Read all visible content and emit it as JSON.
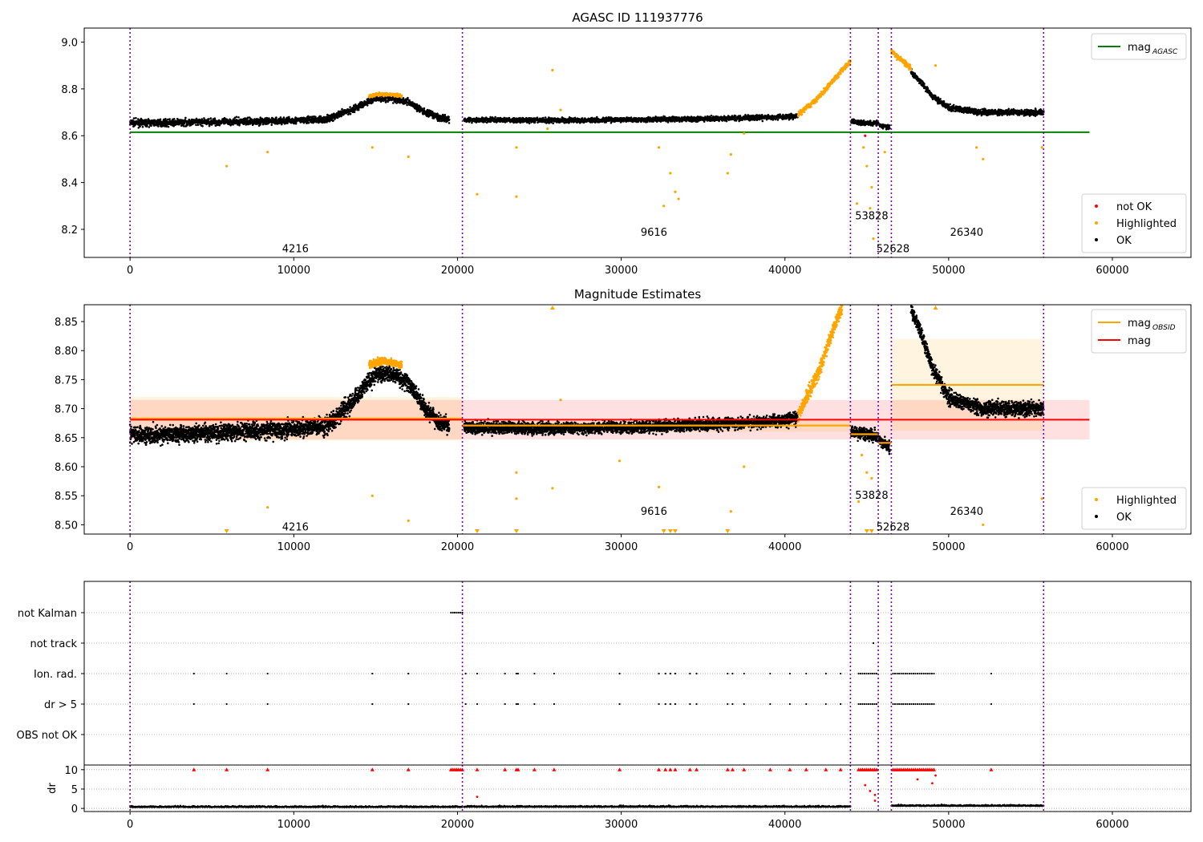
{
  "chart_data": [
    {
      "type": "scatter",
      "title": "AGASC ID 111937776",
      "xlim": [
        -2800,
        64800
      ],
      "ylim": [
        8.08,
        9.06
      ],
      "xticks": [
        0,
        10000,
        20000,
        30000,
        40000,
        50000,
        60000
      ],
      "yticks": [
        8.2,
        8.4,
        8.6,
        8.8,
        9.0
      ],
      "ytick_labels": [
        "8.2",
        "8.4",
        "8.6",
        "8.8",
        "9.0"
      ],
      "obs_boundaries": [
        0,
        20300,
        44000,
        45700,
        46500,
        55800
      ],
      "obsid_labels": [
        {
          "text": "4216",
          "x": 10100,
          "y": 8.12
        },
        {
          "text": "9616",
          "x": 32000,
          "y": 8.19
        },
        {
          "text": "53828",
          "x": 45300,
          "y": 8.26
        },
        {
          "text": "52628",
          "x": 46600,
          "y": 8.12
        },
        {
          "text": "26340",
          "x": 51100,
          "y": 8.19
        }
      ],
      "lines": [
        {
          "name": "mag$_{AGASC}$",
          "label_main": "mag",
          "label_sub": "AGASC",
          "y": 8.615,
          "x0": 0,
          "x1": 58600,
          "color": "#008000"
        }
      ],
      "legend_lines": {
        "position": "upper right",
        "entries": [
          {
            "main": "mag",
            "sub": "AGASC",
            "color": "#008000"
          }
        ]
      },
      "legend_points": {
        "position": "lower right",
        "entries": [
          {
            "label": "not OK",
            "color": "#ff0000"
          },
          {
            "label": "Highlighted",
            "color": "#ffa500"
          },
          {
            "label": "OK",
            "color": "#000000"
          }
        ]
      },
      "series": [
        {
          "name": "OK",
          "color": "#000000",
          "segments": [
            {
              "x": [
                0,
                2000,
                4000,
                6000,
                8000,
                10000,
                12000,
                13500,
                15000,
                16000,
                17000,
                18000,
                19000,
                19500
              ],
              "y": [
                8.655,
                8.655,
                8.658,
                8.66,
                8.662,
                8.665,
                8.67,
                8.71,
                8.76,
                8.76,
                8.745,
                8.7,
                8.675,
                8.67
              ],
              "spread": 0.014
            },
            {
              "x": [
                20400,
                25000,
                30000,
                35000,
                38000,
                40000,
                40800
              ],
              "y": [
                8.668,
                8.666,
                8.668,
                8.672,
                8.676,
                8.68,
                8.685
              ],
              "spread": 0.01
            },
            {
              "x": [
                44050,
                45000,
                45700
              ],
              "y": [
                8.66,
                8.656,
                8.652
              ],
              "spread": 0.01
            },
            {
              "x": [
                45750,
                46400
              ],
              "y": [
                8.645,
                8.635
              ],
              "spread": 0.01
            },
            {
              "x": [
                47700,
                48200,
                49000,
                50000,
                52000,
                55800
              ],
              "y": [
                8.87,
                8.84,
                8.77,
                8.72,
                8.7,
                8.7
              ],
              "spread": 0.012
            }
          ]
        },
        {
          "name": "Highlighted",
          "color": "#ffa500",
          "segments": [
            {
              "x": [
                14600,
                15000,
                15500,
                16000,
                16600
              ],
              "y": [
                8.77,
                8.775,
                8.778,
                8.775,
                8.77
              ],
              "spread": 0.007
            },
            {
              "x": [
                40800,
                42000,
                43000,
                44000
              ],
              "y": [
                8.69,
                8.76,
                8.84,
                8.92
              ],
              "spread": 0.012
            },
            {
              "x": [
                46500,
                47000,
                47700
              ],
              "y": [
                8.96,
                8.93,
                8.89
              ],
              "spread": 0.012
            }
          ],
          "outliers": [
            {
              "x": 5900,
              "y": 8.47
            },
            {
              "x": 8400,
              "y": 8.53
            },
            {
              "x": 14800,
              "y": 8.55
            },
            {
              "x": 17000,
              "y": 8.51
            },
            {
              "x": 21200,
              "y": 8.35
            },
            {
              "x": 23600,
              "y": 8.34
            },
            {
              "x": 23600,
              "y": 8.55
            },
            {
              "x": 25500,
              "y": 8.63
            },
            {
              "x": 25800,
              "y": 8.88
            },
            {
              "x": 26300,
              "y": 8.71
            },
            {
              "x": 32300,
              "y": 8.55
            },
            {
              "x": 32600,
              "y": 8.3
            },
            {
              "x": 33000,
              "y": 8.44
            },
            {
              "x": 33300,
              "y": 8.36
            },
            {
              "x": 33500,
              "y": 8.33
            },
            {
              "x": 36500,
              "y": 8.44
            },
            {
              "x": 36700,
              "y": 8.52
            },
            {
              "x": 37500,
              "y": 8.61
            },
            {
              "x": 44400,
              "y": 8.31
            },
            {
              "x": 44800,
              "y": 8.55
            },
            {
              "x": 45000,
              "y": 8.47
            },
            {
              "x": 45200,
              "y": 8.29
            },
            {
              "x": 45300,
              "y": 8.38
            },
            {
              "x": 45400,
              "y": 8.16
            },
            {
              "x": 46100,
              "y": 8.53
            },
            {
              "x": 49200,
              "y": 8.9
            },
            {
              "x": 51700,
              "y": 8.55
            },
            {
              "x": 52100,
              "y": 8.5
            },
            {
              "x": 55700,
              "y": 8.55
            }
          ]
        },
        {
          "name": "not OK",
          "color": "#ff0000",
          "segments": [],
          "outliers": [
            {
              "x": 44900,
              "y": 8.6
            }
          ]
        }
      ]
    },
    {
      "type": "scatter",
      "title": "Magnitude Estimates",
      "xlim": [
        -2800,
        64800
      ],
      "ylim": [
        8.484,
        8.879
      ],
      "xticks": [
        0,
        10000,
        20000,
        30000,
        40000,
        50000,
        60000
      ],
      "yticks": [
        8.5,
        8.55,
        8.6,
        8.65,
        8.7,
        8.75,
        8.8,
        8.85
      ],
      "ytick_labels": [
        "8.50",
        "8.55",
        "8.60",
        "8.65",
        "8.70",
        "8.75",
        "8.80",
        "8.85"
      ],
      "obs_boundaries": [
        0,
        20300,
        44000,
        45700,
        46500,
        55800
      ],
      "obsid_labels": [
        {
          "text": "4216",
          "x": 10100,
          "y": 8.497
        },
        {
          "text": "9616",
          "x": 32000,
          "y": 8.524
        },
        {
          "text": "53828",
          "x": 45300,
          "y": 8.552
        },
        {
          "text": "52628",
          "x": 46600,
          "y": 8.497
        },
        {
          "text": "26340",
          "x": 51100,
          "y": 8.524
        }
      ],
      "lines": [
        {
          "name": "mag",
          "y": 8.681,
          "x0": 0,
          "x1": 58600,
          "color": "#ff0000",
          "band": [
            8.647,
            8.715
          ]
        },
        {
          "name": "mag$_{OBSID}$",
          "color": "#ffa500",
          "steps": [
            {
              "x0": 0,
              "x1": 20300,
              "y": 8.683,
              "band": [
                8.645,
                8.72
              ]
            },
            {
              "x0": 20300,
              "x1": 44000,
              "y": 8.671,
              "band": [
                8.66,
                8.682
              ]
            },
            {
              "x0": 44000,
              "x1": 45700,
              "y": 8.656,
              "band": [
                8.65,
                8.662
              ]
            },
            {
              "x0": 45700,
              "x1": 46500,
              "y": 8.641,
              "band": [
                8.636,
                8.646
              ]
            },
            {
              "x0": 46500,
              "x1": 55800,
              "y": 8.741,
              "band": [
                8.662,
                8.82
              ]
            }
          ]
        }
      ],
      "legend_lines": {
        "position": "upper right",
        "entries": [
          {
            "main": "mag",
            "sub": "OBSID",
            "color": "#ffa500"
          },
          {
            "main": "mag",
            "sub": "",
            "color": "#ff0000"
          }
        ]
      },
      "legend_points": {
        "position": "lower right",
        "entries": [
          {
            "label": "Highlighted",
            "color": "#ffa500"
          },
          {
            "label": "OK",
            "color": "#000000"
          }
        ]
      },
      "series": [
        {
          "name": "OK",
          "color": "#000000",
          "segments": [
            {
              "x": [
                0,
                2000,
                4000,
                6000,
                8000,
                10000,
                12000,
                13500,
                15000,
                16000,
                17000,
                18000,
                19000,
                19500
              ],
              "y": [
                8.655,
                8.655,
                8.658,
                8.66,
                8.662,
                8.665,
                8.67,
                8.71,
                8.76,
                8.76,
                8.745,
                8.7,
                8.675,
                8.67
              ],
              "spread": 0.014
            },
            {
              "x": [
                20400,
                25000,
                30000,
                35000,
                38000,
                40000,
                40800
              ],
              "y": [
                8.668,
                8.666,
                8.668,
                8.672,
                8.676,
                8.68,
                8.685
              ],
              "spread": 0.01
            },
            {
              "x": [
                44050,
                45000,
                45700
              ],
              "y": [
                8.66,
                8.656,
                8.652
              ],
              "spread": 0.01
            },
            {
              "x": [
                45750,
                46400
              ],
              "y": [
                8.645,
                8.635
              ],
              "spread": 0.01
            },
            {
              "x": [
                47700,
                48200,
                49000,
                50000,
                52000,
                55800
              ],
              "y": [
                8.87,
                8.84,
                8.77,
                8.72,
                8.7,
                8.7
              ],
              "spread": 0.012
            }
          ]
        },
        {
          "name": "Highlighted",
          "color": "#ffa500",
          "segments": [
            {
              "x": [
                14600,
                15000,
                15500,
                16000,
                16600
              ],
              "y": [
                8.775,
                8.78,
                8.782,
                8.78,
                8.775
              ],
              "spread": 0.006
            },
            {
              "x": [
                40800,
                42000,
                43000,
                43500
              ],
              "y": [
                8.69,
                8.76,
                8.84,
                8.875
              ],
              "spread": 0.012
            }
          ],
          "outliers": [
            {
              "x": 8400,
              "y": 8.53
            },
            {
              "x": 14800,
              "y": 8.55
            },
            {
              "x": 17000,
              "y": 8.507
            },
            {
              "x": 23600,
              "y": 8.59
            },
            {
              "x": 23600,
              "y": 8.545
            },
            {
              "x": 25800,
              "y": 8.563
            },
            {
              "x": 26300,
              "y": 8.715
            },
            {
              "x": 29900,
              "y": 8.61
            },
            {
              "x": 32300,
              "y": 8.565
            },
            {
              "x": 36700,
              "y": 8.523
            },
            {
              "x": 37500,
              "y": 8.6
            },
            {
              "x": 44700,
              "y": 8.62
            },
            {
              "x": 45000,
              "y": 8.59
            },
            {
              "x": 45300,
              "y": 8.58
            },
            {
              "x": 44500,
              "y": 8.54
            },
            {
              "x": 52100,
              "y": 8.5
            },
            {
              "x": 55700,
              "y": 8.545
            }
          ],
          "clipped_low": [
            5900,
            21200,
            23600,
            32600,
            33000,
            33300,
            36500,
            45000,
            45300
          ],
          "clipped_high": [
            25800,
            49200
          ]
        }
      ]
    },
    {
      "type": "scatter",
      "title": "",
      "xlim": [
        -2800,
        64800
      ],
      "categories": [
        "not Kalman",
        "not track",
        "Ion. rad.",
        "dr > 5",
        "OBS not OK"
      ],
      "obs_boundaries": [
        0,
        20300,
        44000,
        45700,
        46500,
        55800
      ],
      "flag_events": {
        "not Kalman": [
          [
            19600,
            20300
          ]
        ],
        "not track": [
          [
            45400,
            45400
          ]
        ],
        "Ion. rad.": [
          3900,
          5900,
          8400,
          14800,
          17000,
          20500,
          21200,
          22900,
          23600,
          23700,
          24700,
          25900,
          29900,
          32300,
          32700,
          33000,
          33300,
          34200,
          34600,
          36500,
          36800,
          37500,
          39100,
          40300,
          41300,
          42500,
          43400,
          [
            44500,
            45600
          ],
          [
            46600,
            49100
          ],
          52600
        ],
        "dr > 5": [
          3900,
          5900,
          8400,
          14800,
          17000,
          20500,
          21200,
          22900,
          23600,
          23700,
          24700,
          25900,
          29900,
          32300,
          32700,
          33000,
          33300,
          34200,
          34600,
          36500,
          36800,
          37500,
          39100,
          40300,
          41300,
          42500,
          43400,
          [
            44500,
            45600
          ],
          [
            46600,
            49100
          ],
          52600
        ],
        "OBS not OK": []
      }
    },
    {
      "type": "scatter",
      "title": "",
      "xlim": [
        -2800,
        64800
      ],
      "ylim": [
        -0.8,
        11.2
      ],
      "yticks": [
        0,
        5,
        10
      ],
      "ytick_labels": [
        "0",
        "5",
        "10"
      ],
      "xticks": [
        0,
        10000,
        20000,
        30000,
        40000,
        50000,
        60000
      ],
      "ylabel": "dr",
      "obs_boundaries": [
        0,
        20300,
        44000,
        45700,
        46500,
        55800
      ],
      "series": [
        {
          "name": "OK",
          "color": "#000000",
          "baseline": [
            [
              0,
              20300,
              0.3
            ],
            [
              20400,
              44000,
              0.35
            ],
            [
              46500,
              55800,
              0.6
            ]
          ]
        },
        {
          "name": "not OK",
          "color": "#ff0000",
          "clipped_at_10": [
            3900,
            5900,
            8400,
            14800,
            17000,
            21200,
            22900,
            23600,
            23700,
            24700,
            25900,
            29900,
            32300,
            32700,
            33000,
            33300,
            34200,
            34600,
            36500,
            36800,
            37500,
            39100,
            40300,
            41300,
            42500,
            43400,
            52600
          ],
          "clipped_ranges": [
            [
              19600,
              20300
            ],
            [
              44500,
              45600
            ],
            [
              46600,
              49100
            ]
          ],
          "points": [
            {
              "x": 21200,
              "y": 3.0
            },
            {
              "x": 44900,
              "y": 6.0
            },
            {
              "x": 45200,
              "y": 4.5
            },
            {
              "x": 45500,
              "y": 3.5
            },
            {
              "x": 48100,
              "y": 7.5
            },
            {
              "x": 49000,
              "y": 6.5
            },
            {
              "x": 49200,
              "y": 8.5
            },
            {
              "x": 45500,
              "y": 2.0
            }
          ]
        }
      ]
    }
  ]
}
